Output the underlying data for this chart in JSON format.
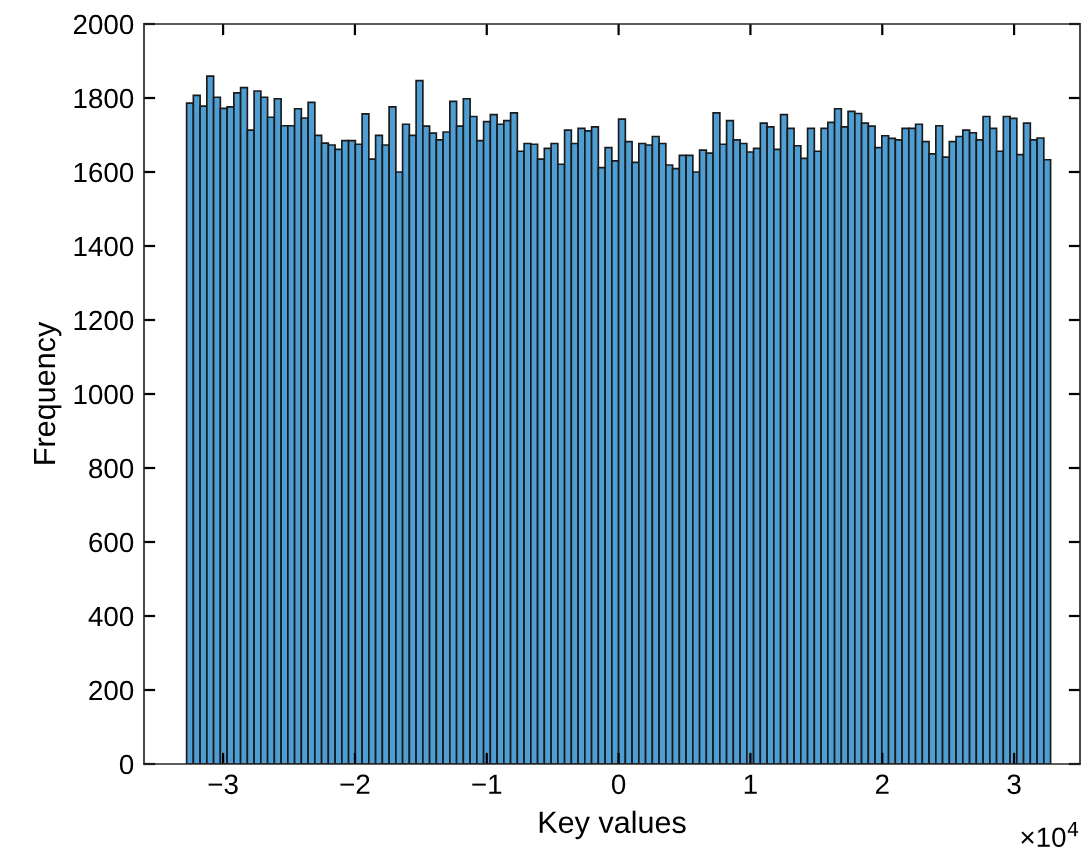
{
  "chart_data": {
    "type": "histogram",
    "xlabel": "Key values",
    "ylabel": "Frequency",
    "annotations": [
      "×10$^{4}$"
    ],
    "bins": [
      -3.2768,
      -3.2256,
      -3.1744,
      -3.1232,
      -3.072,
      -3.0208,
      -2.9696,
      -2.9184,
      -2.8672,
      -2.816,
      -2.7648,
      -2.7136,
      -2.6624,
      -2.6112,
      -2.56,
      -2.5088,
      -2.4576,
      -2.4064,
      -2.3552,
      -2.304,
      -2.2528,
      -2.2016,
      -2.1504,
      -2.0992,
      -2.048,
      -1.9968,
      -1.9456,
      -1.8944,
      -1.8432,
      -1.792,
      -1.7408,
      -1.6896,
      -1.6384,
      -1.5872,
      -1.536,
      -1.4848,
      -1.4336,
      -1.3824,
      -1.3312,
      -1.28,
      -1.2288,
      -1.1776,
      -1.1264,
      -1.0752,
      -1.024,
      -0.9728,
      -0.9216,
      -0.8704,
      -0.8192,
      -0.768,
      -0.7168,
      -0.6656,
      -0.6144,
      -0.5632,
      -0.512,
      -0.4608,
      -0.4096,
      -0.3584,
      -0.3072,
      -0.256,
      -0.2048,
      -0.1536,
      -0.1024,
      -0.0512,
      0,
      0.0512,
      0.1024,
      0.1536,
      0.2048,
      0.256,
      0.3072,
      0.3584,
      0.4096,
      0.4608,
      0.512,
      0.5632,
      0.6144,
      0.6656,
      0.7168,
      0.768,
      0.8192,
      0.8704,
      0.9216,
      0.9728,
      1.024,
      1.0752,
      1.1264,
      1.1776,
      1.2288,
      1.28,
      1.3312,
      1.3824,
      1.4336,
      1.4848,
      1.536,
      1.5872,
      1.6384,
      1.6896,
      1.7408,
      1.792,
      1.8432,
      1.8944,
      1.9456,
      1.9968,
      2.048,
      2.0992,
      2.1504,
      2.2016,
      2.2528,
      2.304,
      2.3552,
      2.4064,
      2.4576,
      2.5088,
      2.56,
      2.6112,
      2.6624,
      2.7136,
      2.7648,
      2.816,
      2.8672,
      2.9184,
      2.9696,
      3.0208,
      3.072,
      3.1232,
      3.1744,
      3.2256,
      3.2768
    ],
    "values": [
      1786,
      1807,
      1778,
      1859,
      1802,
      1772,
      1776,
      1814,
      1828,
      1713,
      1819,
      1802,
      1748,
      1798,
      1725,
      1725,
      1771,
      1746,
      1788,
      1699,
      1678,
      1673,
      1661,
      1685,
      1685,
      1675,
      1757,
      1635,
      1699,
      1673,
      1776,
      1600,
      1729,
      1699,
      1847,
      1724,
      1705,
      1687,
      1708,
      1791,
      1724,
      1798,
      1750,
      1685,
      1736,
      1755,
      1729,
      1739,
      1760,
      1656,
      1677,
      1675,
      1635,
      1664,
      1677,
      1621,
      1713,
      1677,
      1718,
      1711,
      1722,
      1612,
      1666,
      1630,
      1743,
      1682,
      1626,
      1677,
      1673,
      1696,
      1677,
      1619,
      1609,
      1645,
      1645,
      1600,
      1659,
      1651,
      1760,
      1675,
      1739,
      1687,
      1677,
      1654,
      1664,
      1732,
      1722,
      1661,
      1755,
      1718,
      1671,
      1637,
      1718,
      1656,
      1718,
      1734,
      1771,
      1722,
      1764,
      1758,
      1732,
      1724,
      1666,
      1698,
      1691,
      1687,
      1718,
      1718,
      1729,
      1682,
      1649,
      1725,
      1640,
      1682,
      1696,
      1713,
      1706,
      1687,
      1750,
      1718,
      1656,
      1750,
      1745,
      1647,
      1732,
      1687,
      1692,
      1633
    ],
    "color": "#4f9ed3",
    "xlim": [
      -3.6,
      3.5
    ],
    "xticks": [
      {
        "value": -3,
        "label": "−3"
      },
      {
        "value": -2,
        "label": "−2"
      },
      {
        "value": -1,
        "label": "−1"
      },
      0,
      1,
      2,
      3
    ],
    "ylim": [
      0,
      2000
    ],
    "yticks": [
      0,
      200,
      400,
      600,
      800,
      1000,
      1200,
      1400,
      1600,
      1800,
      2000
    ],
    "grid": false,
    "legend": false
  }
}
